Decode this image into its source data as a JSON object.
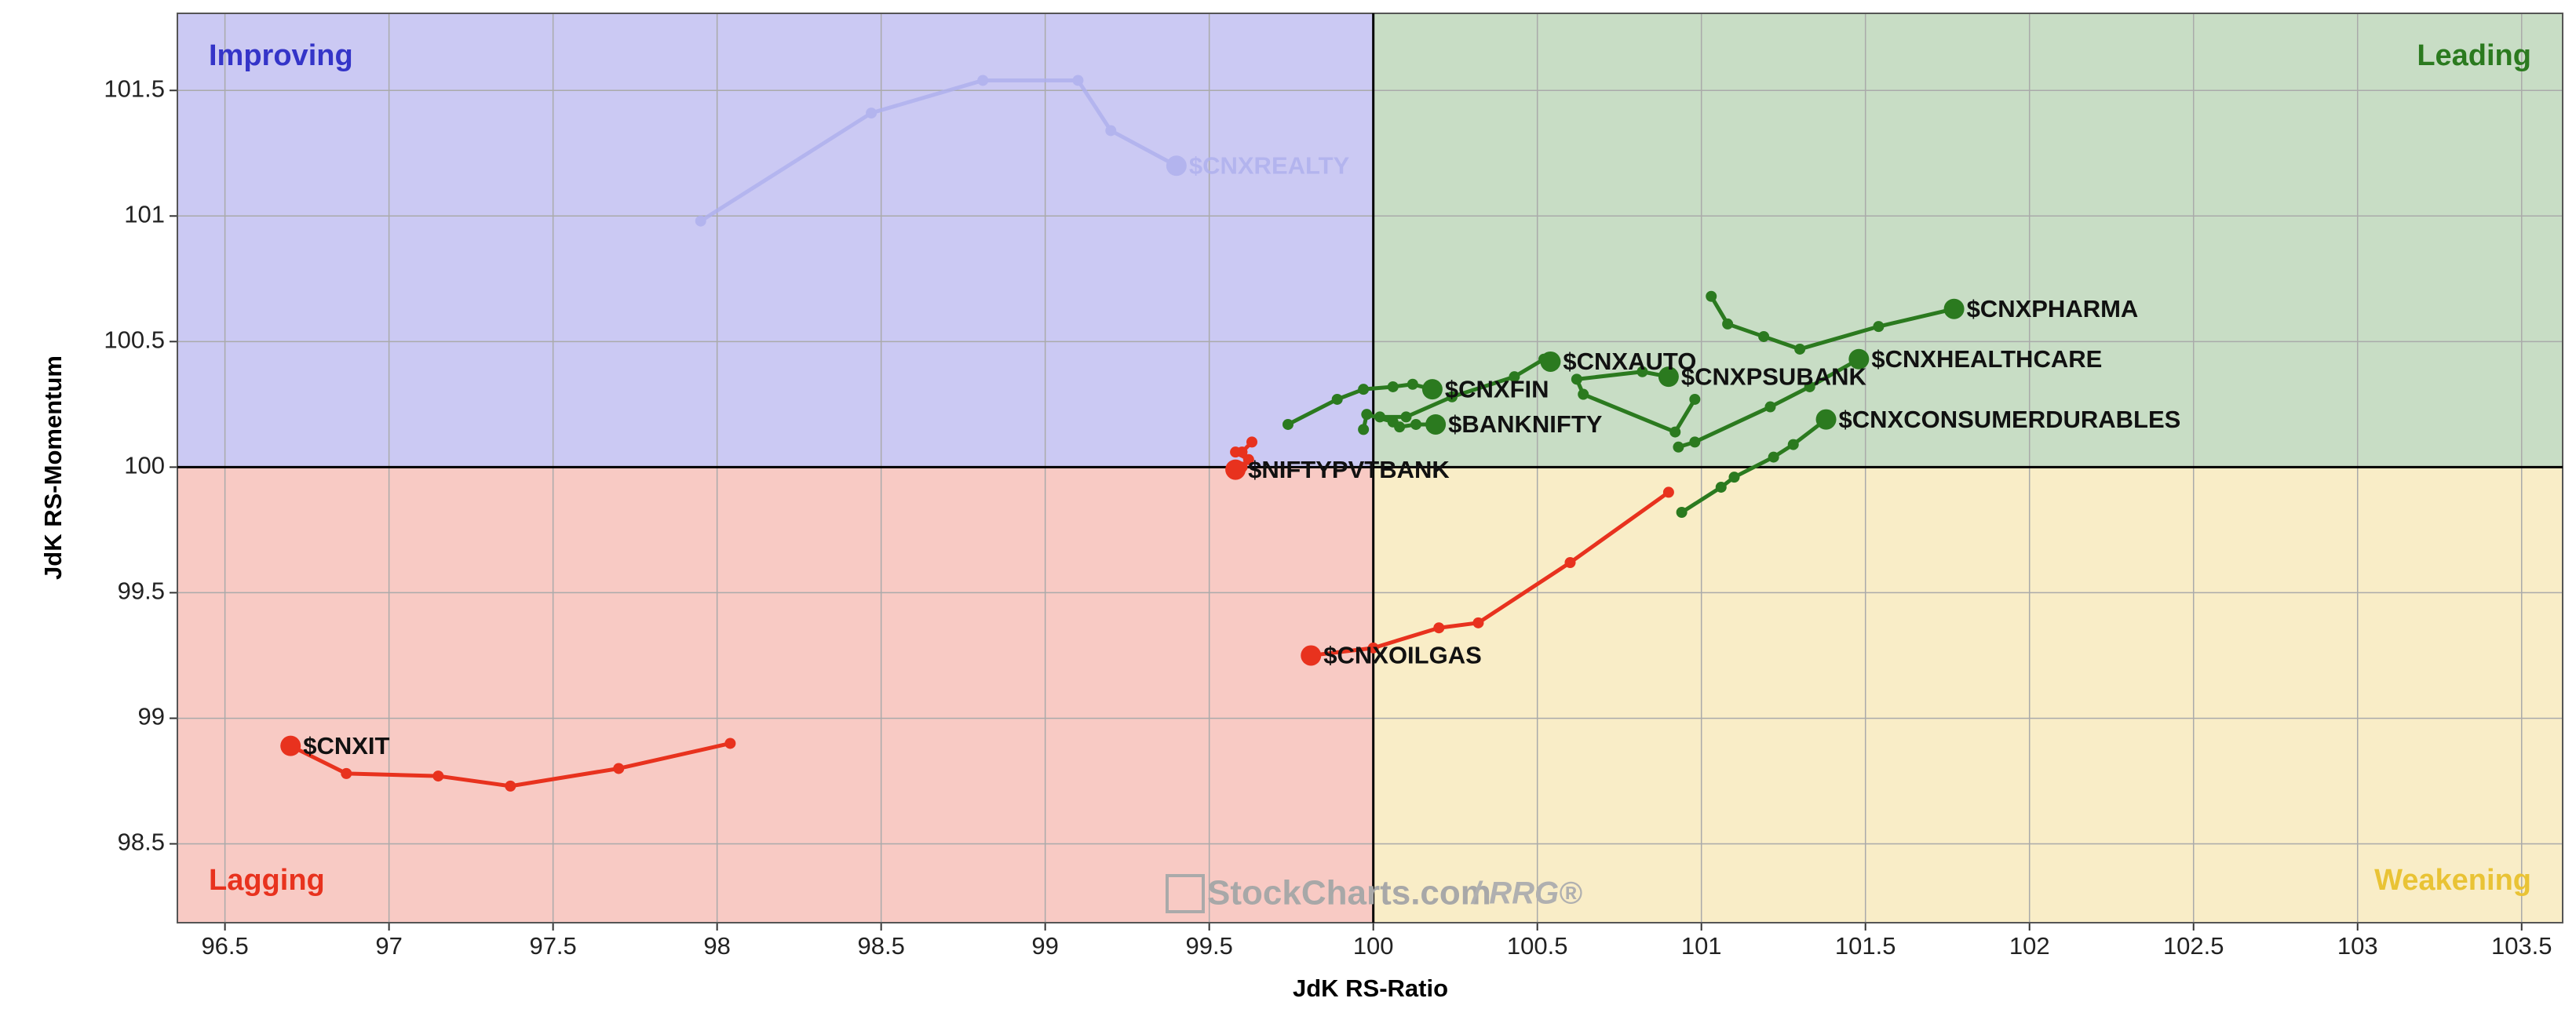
{
  "chart_data": {
    "type": "line",
    "x_label": "JdK RS-Ratio",
    "y_label": "JdK RS-Momentum",
    "xlim": [
      96.355,
      103.625
    ],
    "ylim": [
      98.186,
      101.807
    ],
    "xticks": [
      96.5,
      97,
      97.5,
      98,
      98.5,
      99,
      99.5,
      100,
      100.5,
      101,
      101.5,
      102,
      102.5,
      103,
      103.5
    ],
    "yticks": [
      98.5,
      99,
      99.5,
      100,
      100.5,
      101,
      101.5
    ],
    "grid": true,
    "center": [
      100,
      100
    ],
    "quadrants": [
      {
        "name": "Improving",
        "color": "#3434c8",
        "background": "#cbc9f3"
      },
      {
        "name": "Leading",
        "color": "#2b7a1f",
        "background": "#c8ddc5"
      },
      {
        "name": "Lagging",
        "color": "#e8321e",
        "background": "#f8cac4"
      },
      {
        "name": "Weakening",
        "color": "#e9c335",
        "background": "#f9edc7"
      }
    ],
    "watermark": [
      "StockCharts.com",
      "/ RRG®"
    ],
    "series": [
      {
        "name": "$CNXREALTY",
        "color": "#aeb0ee",
        "opacity": 0.8,
        "x": [
          97.95,
          98.47,
          98.81,
          99.1,
          99.2,
          99.4
        ],
        "values": [
          100.98,
          101.41,
          101.54,
          101.54,
          101.34,
          101.2
        ]
      },
      {
        "name": "$CNXIT",
        "color": "#e8321e",
        "opacity": 1,
        "x": [
          98.04,
          97.7,
          97.37,
          97.15,
          96.87,
          96.7
        ],
        "values": [
          98.9,
          98.8,
          98.73,
          98.77,
          98.78,
          98.89
        ]
      },
      {
        "name": "$CNXOILGAS",
        "color": "#e8321e",
        "opacity": 1,
        "x": [
          100.9,
          100.6,
          100.32,
          100.2,
          100.0,
          99.81
        ],
        "values": [
          99.9,
          99.62,
          99.38,
          99.36,
          99.28,
          99.25
        ]
      },
      {
        "name": "$NIFTYPVTBANK",
        "color": "#e8321e",
        "opacity": 1,
        "x": [
          99.63,
          99.6,
          99.58,
          99.62,
          99.6,
          99.58
        ],
        "values": [
          100.1,
          100.06,
          100.06,
          100.03,
          100.0,
          99.99
        ]
      },
      {
        "name": "$CNXPHARMA",
        "color": "#2b7a1f",
        "opacity": 1,
        "x": [
          101.03,
          101.08,
          101.19,
          101.3,
          101.54,
          101.77
        ],
        "values": [
          100.68,
          100.57,
          100.52,
          100.47,
          100.56,
          100.63
        ]
      },
      {
        "name": "$CNXHEALTHCARE",
        "color": "#2b7a1f",
        "opacity": 1,
        "x": [
          100.93,
          100.98,
          101.21,
          101.33,
          101.48
        ],
        "values": [
          100.08,
          100.1,
          100.24,
          100.32,
          100.43
        ]
      },
      {
        "name": "$CNXCONSUMERDURABLES",
        "color": "#2b7a1f",
        "opacity": 1,
        "x": [
          100.94,
          101.06,
          101.1,
          101.22,
          101.28,
          101.38
        ],
        "values": [
          99.82,
          99.92,
          99.96,
          100.04,
          100.09,
          100.19
        ]
      },
      {
        "name": "$CNXPSUBANK",
        "color": "#2b7a1f",
        "opacity": 1,
        "x": [
          100.98,
          100.92,
          100.64,
          100.62,
          100.82,
          100.9
        ],
        "values": [
          100.27,
          100.14,
          100.29,
          100.35,
          100.38,
          100.36
        ]
      },
      {
        "name": "$CNXAUTO",
        "color": "#2b7a1f",
        "opacity": 1,
        "x": [
          100.02,
          100.1,
          100.24,
          100.43,
          100.52,
          100.54
        ],
        "values": [
          100.2,
          100.2,
          100.28,
          100.36,
          100.43,
          100.42
        ]
      },
      {
        "name": "$CNXFIN",
        "color": "#2b7a1f",
        "opacity": 1,
        "x": [
          99.74,
          99.89,
          99.97,
          100.06,
          100.12,
          100.18
        ],
        "values": [
          100.17,
          100.27,
          100.31,
          100.32,
          100.33,
          100.31
        ]
      },
      {
        "name": "$BANKNIFTY",
        "color": "#2b7a1f",
        "opacity": 1,
        "x": [
          99.97,
          99.98,
          100.06,
          100.08,
          100.13,
          100.19
        ],
        "values": [
          100.15,
          100.21,
          100.18,
          100.16,
          100.17,
          100.17
        ]
      }
    ]
  }
}
